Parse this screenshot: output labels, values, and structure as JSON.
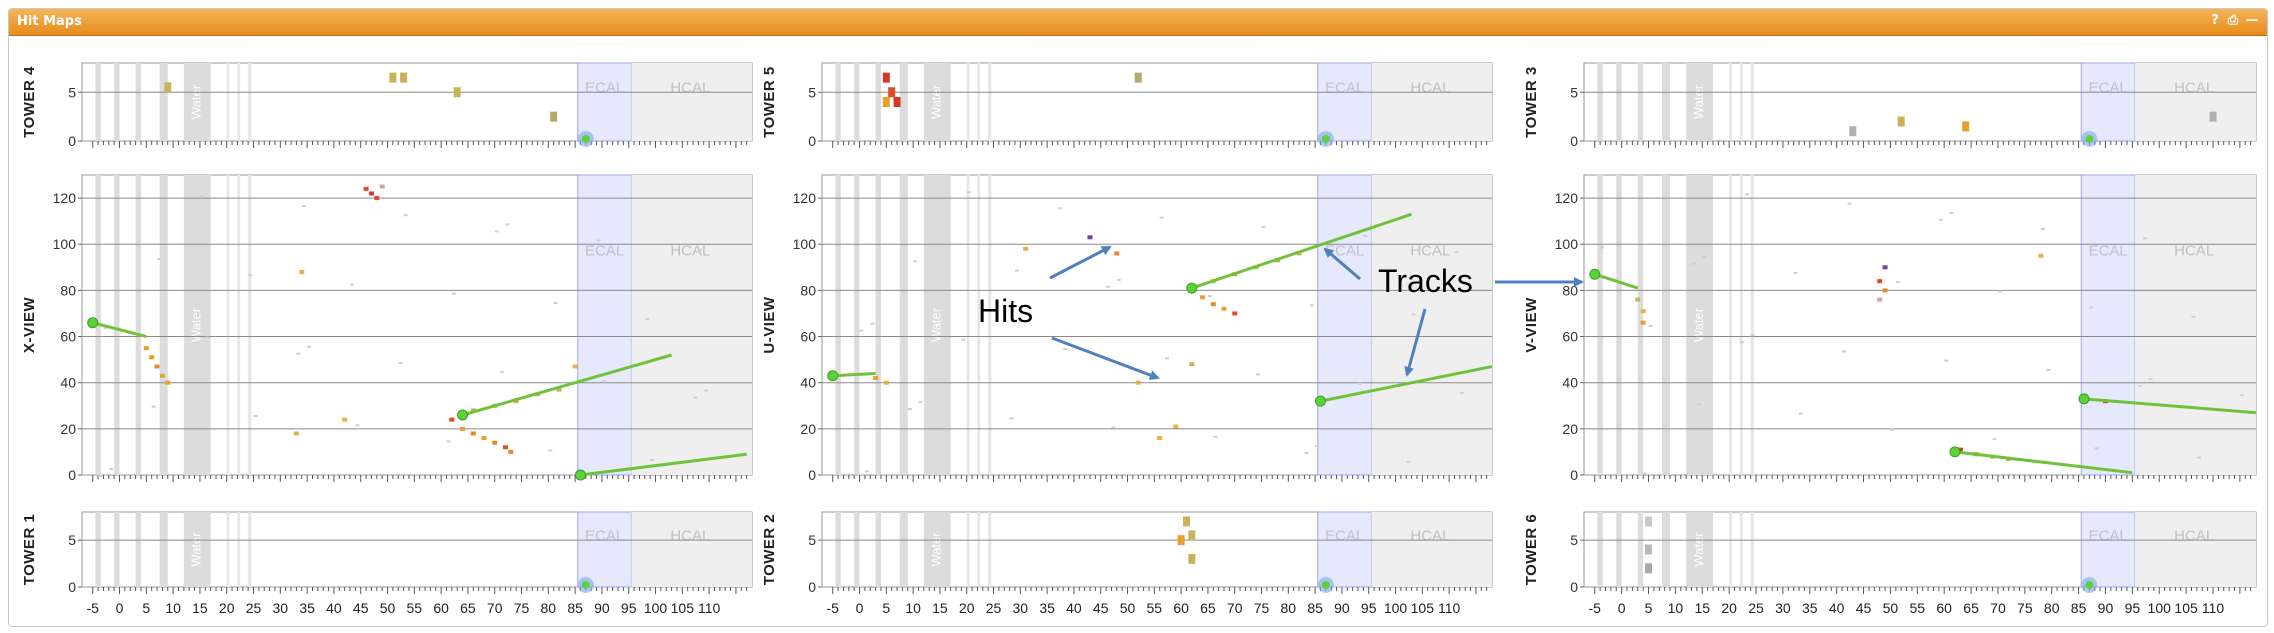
{
  "panel": {
    "title": "Hit Maps",
    "buttons": [
      {
        "name": "help-button",
        "icon": "help-icon",
        "glyph": "?"
      },
      {
        "name": "print-button",
        "icon": "print-icon",
        "glyph": "⎙"
      },
      {
        "name": "minimize-button",
        "icon": "minimize-icon",
        "glyph": "—"
      }
    ]
  },
  "detector": {
    "water_label": "Water",
    "ecal_label": "ECAL",
    "hcal_label": "HCAL",
    "x_ticks": [
      "-5",
      "0",
      "5",
      "10",
      "15",
      "20",
      "25",
      "30",
      "35",
      "40",
      "45",
      "50",
      "55",
      "60",
      "65",
      "70",
      "75",
      "80",
      "85",
      "90",
      "95",
      "100",
      "105",
      "110"
    ],
    "tower_y_ticks": [
      "0",
      "5"
    ],
    "view_y_ticks": [
      "0",
      "20",
      "40",
      "60",
      "80",
      "100",
      "120"
    ],
    "colors": {
      "water": "#dcdcdc",
      "ecal": "#e6e8fb",
      "hcal": "#efefef",
      "track": "#6fc23a",
      "vertex": "#5bd13a",
      "annotation_arrow": "#4f81bd"
    }
  },
  "columns": [
    {
      "top_label": "Tower 4",
      "view_label": "X-View",
      "bottom_label": "Tower 1",
      "tracks": [
        {
          "x1": -5,
          "y1": 66,
          "x2": 5,
          "y2": 60
        },
        {
          "x1": 64,
          "y1": 26,
          "x2": 103,
          "y2": 52
        },
        {
          "x1": 86,
          "y1": 0,
          "x2": 117,
          "y2": 9
        }
      ],
      "vertices": [
        {
          "x": -5,
          "y": 66
        },
        {
          "x": 64,
          "y": 26
        },
        {
          "x": 86,
          "y": 0
        }
      ],
      "view_hits": [
        {
          "x": 5,
          "y": 55,
          "c": "#e7a02a"
        },
        {
          "x": 6,
          "y": 51,
          "c": "#e7a02a"
        },
        {
          "x": 7,
          "y": 47,
          "c": "#e58a2a"
        },
        {
          "x": 8,
          "y": 43,
          "c": "#d9a53a"
        },
        {
          "x": 9,
          "y": 40,
          "c": "#e7a02a"
        },
        {
          "x": 34,
          "y": 88,
          "c": "#e7b04a"
        },
        {
          "x": 46,
          "y": 124,
          "c": "#e24a2a"
        },
        {
          "x": 47,
          "y": 122,
          "c": "#d43a28"
        },
        {
          "x": 48,
          "y": 120,
          "c": "#e24a2a"
        },
        {
          "x": 49,
          "y": 125,
          "c": "#c8a8a0"
        },
        {
          "x": 62,
          "y": 24,
          "c": "#e24a2a"
        },
        {
          "x": 64,
          "y": 20,
          "c": "#e7a02a"
        },
        {
          "x": 66,
          "y": 18,
          "c": "#e58a2a"
        },
        {
          "x": 68,
          "y": 16,
          "c": "#e7a02a"
        },
        {
          "x": 70,
          "y": 14,
          "c": "#e58a2a"
        },
        {
          "x": 72,
          "y": 12,
          "c": "#e24a2a"
        },
        {
          "x": 73,
          "y": 10,
          "c": "#e58a2a"
        },
        {
          "x": 66,
          "y": 28,
          "c": "#c9b35a"
        },
        {
          "x": 70,
          "y": 30,
          "c": "#d9a53a"
        },
        {
          "x": 74,
          "y": 32,
          "c": "#c9b35a"
        },
        {
          "x": 78,
          "y": 35,
          "c": "#d9a53a"
        },
        {
          "x": 82,
          "y": 37,
          "c": "#c9b35a"
        },
        {
          "x": 42,
          "y": 24,
          "c": "#e7b04a"
        },
        {
          "x": 33,
          "y": 18,
          "c": "#e7b04a"
        },
        {
          "x": 85,
          "y": 47,
          "c": "#e7b04a"
        }
      ],
      "top_hits": [
        {
          "x": 51,
          "y": 6.5,
          "c": "#c9b35a"
        },
        {
          "x": 53,
          "y": 6.5,
          "c": "#c9b35a"
        },
        {
          "x": 63,
          "y": 5,
          "c": "#c9b35a"
        },
        {
          "x": 81,
          "y": 2.5,
          "c": "#b8a86a"
        },
        {
          "x": 9,
          "y": 5.5,
          "c": "#c9b35a"
        }
      ],
      "bottom_hits": []
    },
    {
      "top_label": "Tower 5",
      "view_label": "U-View",
      "bottom_label": "Tower 2",
      "tracks": [
        {
          "x1": -5,
          "y1": 43,
          "x2": 3,
          "y2": 44
        },
        {
          "x1": 62,
          "y1": 81,
          "x2": 103,
          "y2": 113
        },
        {
          "x1": 86,
          "y1": 32,
          "x2": 118,
          "y2": 47
        }
      ],
      "vertices": [
        {
          "x": -5,
          "y": 43
        },
        {
          "x": 62,
          "y": 81
        },
        {
          "x": 86,
          "y": 32
        }
      ],
      "view_hits": [
        {
          "x": 3,
          "y": 42,
          "c": "#e7a02a"
        },
        {
          "x": 5,
          "y": 40,
          "c": "#e7b04a"
        },
        {
          "x": 31,
          "y": 98,
          "c": "#e7b04a"
        },
        {
          "x": 43,
          "y": 103,
          "c": "#7a3fa0"
        },
        {
          "x": 48,
          "y": 96,
          "c": "#e58a2a"
        },
        {
          "x": 52,
          "y": 40,
          "c": "#e7b04a"
        },
        {
          "x": 56,
          "y": 16,
          "c": "#e7b04a"
        },
        {
          "x": 59,
          "y": 21,
          "c": "#e7b04a"
        },
        {
          "x": 62,
          "y": 48,
          "c": "#c9b35a"
        },
        {
          "x": 64,
          "y": 77,
          "c": "#e7a02a"
        },
        {
          "x": 66,
          "y": 74,
          "c": "#e58a2a"
        },
        {
          "x": 68,
          "y": 72,
          "c": "#e7a02a"
        },
        {
          "x": 70,
          "y": 70,
          "c": "#e24a2a"
        },
        {
          "x": 66,
          "y": 84,
          "c": "#c9b35a"
        },
        {
          "x": 70,
          "y": 87,
          "c": "#d9a53a"
        },
        {
          "x": 74,
          "y": 90,
          "c": "#c9b35a"
        },
        {
          "x": 78,
          "y": 93,
          "c": "#d9a53a"
        },
        {
          "x": 82,
          "y": 96,
          "c": "#c9b35a"
        }
      ],
      "top_hits": [
        {
          "x": 5,
          "y": 6.5,
          "c": "#d43a28"
        },
        {
          "x": 6,
          "y": 5,
          "c": "#e24a2a"
        },
        {
          "x": 5,
          "y": 4,
          "c": "#e7a02a"
        },
        {
          "x": 7,
          "y": 4,
          "c": "#d43a28"
        },
        {
          "x": 52,
          "y": 6.5,
          "c": "#b8a86a"
        }
      ],
      "bottom_hits": [
        {
          "x": 61,
          "y": 7,
          "c": "#c9b35a"
        },
        {
          "x": 62,
          "y": 5.5,
          "c": "#c9b35a"
        },
        {
          "x": 60,
          "y": 5,
          "c": "#e7a02a"
        },
        {
          "x": 62,
          "y": 3,
          "c": "#c9b35a"
        }
      ]
    },
    {
      "top_label": "Tower 3",
      "view_label": "V-View",
      "bottom_label": "Tower 6",
      "tracks": [
        {
          "x1": -5,
          "y1": 87,
          "x2": 3,
          "y2": 81
        },
        {
          "x1": 86,
          "y1": 33,
          "x2": 118,
          "y2": 27
        },
        {
          "x1": 62,
          "y1": 10,
          "x2": 95,
          "y2": 1
        }
      ],
      "vertices": [
        {
          "x": -5,
          "y": 87
        },
        {
          "x": 86,
          "y": 33
        },
        {
          "x": 62,
          "y": 10
        }
      ],
      "view_hits": [
        {
          "x": 3,
          "y": 76,
          "c": "#c9b35a"
        },
        {
          "x": 4,
          "y": 71,
          "c": "#e7b04a"
        },
        {
          "x": 4,
          "y": 66,
          "c": "#e7a02a"
        },
        {
          "x": 48,
          "y": 84,
          "c": "#e24a2a"
        },
        {
          "x": 49,
          "y": 90,
          "c": "#7a3fa0"
        },
        {
          "x": 49,
          "y": 80,
          "c": "#e58a2a"
        },
        {
          "x": 48,
          "y": 76,
          "c": "#c8a8a0"
        },
        {
          "x": 63,
          "y": 11,
          "c": "#d43a28"
        },
        {
          "x": 66,
          "y": 9,
          "c": "#e58a2a"
        },
        {
          "x": 69,
          "y": 8,
          "c": "#e7a02a"
        },
        {
          "x": 72,
          "y": 7,
          "c": "#e58a2a"
        },
        {
          "x": 78,
          "y": 95,
          "c": "#e7b04a"
        },
        {
          "x": 90,
          "y": 32,
          "c": "#e24a2a"
        }
      ],
      "top_hits": [
        {
          "x": 52,
          "y": 2,
          "c": "#c9b35a"
        },
        {
          "x": 64,
          "y": 1.5,
          "c": "#e7a02a"
        },
        {
          "x": 110,
          "y": 2.5,
          "c": "#b0b0b0"
        },
        {
          "x": 43,
          "y": 1,
          "c": "#b0b0b0"
        }
      ],
      "bottom_hits": [
        {
          "x": 5,
          "y": 7,
          "c": "#c8c8c8"
        },
        {
          "x": 5,
          "y": 4,
          "c": "#b8b8b8"
        },
        {
          "x": 5,
          "y": 2,
          "c": "#a8a8a8"
        }
      ]
    }
  ],
  "annotations": {
    "hits_label": "Hits",
    "tracks_label": "Tracks"
  }
}
